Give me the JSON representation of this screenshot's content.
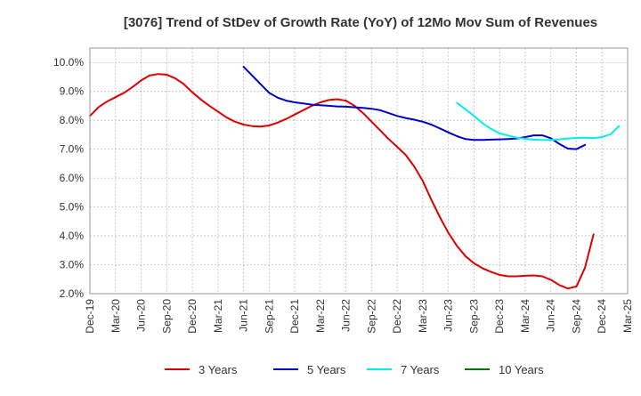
{
  "chart_data": {
    "type": "line",
    "title": "[3076]  Trend of StDev of Growth Rate (YoY) of 12Mo Mov Sum of Revenues",
    "xlabel": "",
    "ylabel": "",
    "ylim": [
      2.0,
      10.5
    ],
    "yticks": [
      2.0,
      3.0,
      4.0,
      5.0,
      6.0,
      7.0,
      8.0,
      9.0,
      10.0
    ],
    "ytick_labels": [
      "2.0%",
      "3.0%",
      "4.0%",
      "5.0%",
      "6.0%",
      "7.0%",
      "8.0%",
      "9.0%",
      "10.0%"
    ],
    "x_start": "Dec-19",
    "x_months": 63,
    "xtick_labels": [
      "Dec-19",
      "Mar-20",
      "Jun-20",
      "Sep-20",
      "Dec-20",
      "Mar-21",
      "Jun-21",
      "Sep-21",
      "Dec-21",
      "Mar-22",
      "Jun-22",
      "Sep-22",
      "Dec-22",
      "Mar-23",
      "Jun-23",
      "Sep-23",
      "Dec-23",
      "Mar-24",
      "Jun-24",
      "Sep-24",
      "Dec-24",
      "Mar-25"
    ],
    "grid": true,
    "legend_position": "bottom",
    "series": [
      {
        "name": "3 Years",
        "color": "#dd0000",
        "start_index": 0,
        "values": [
          8.15,
          8.45,
          8.65,
          8.8,
          8.95,
          9.15,
          9.38,
          9.55,
          9.6,
          9.58,
          9.45,
          9.25,
          8.97,
          8.72,
          8.5,
          8.3,
          8.1,
          7.95,
          7.85,
          7.8,
          7.78,
          7.82,
          7.92,
          8.05,
          8.2,
          8.35,
          8.5,
          8.62,
          8.7,
          8.73,
          8.68,
          8.5,
          8.25,
          7.95,
          7.65,
          7.35,
          7.08,
          6.8,
          6.4,
          5.9,
          5.25,
          4.65,
          4.1,
          3.65,
          3.3,
          3.05,
          2.88,
          2.75,
          2.65,
          2.6,
          2.6,
          2.62,
          2.63,
          2.6,
          2.48,
          2.3,
          2.18,
          2.25,
          2.9,
          4.05
        ]
      },
      {
        "name": "5 Years",
        "color": "#0000cc",
        "start_index": 18,
        "values": [
          9.85,
          9.55,
          9.25,
          8.95,
          8.78,
          8.68,
          8.62,
          8.58,
          8.54,
          8.52,
          8.5,
          8.48,
          8.47,
          8.45,
          8.43,
          8.4,
          8.35,
          8.25,
          8.15,
          8.08,
          8.02,
          7.95,
          7.85,
          7.72,
          7.58,
          7.45,
          7.35,
          7.32,
          7.32,
          7.33,
          7.34,
          7.35,
          7.37,
          7.42,
          7.48,
          7.48,
          7.38,
          7.18,
          7.02,
          7.0,
          7.15
        ]
      },
      {
        "name": "7 Years",
        "color": "#00eeee",
        "start_index": 43,
        "values": [
          8.6,
          8.38,
          8.15,
          7.9,
          7.7,
          7.55,
          7.47,
          7.4,
          7.36,
          7.33,
          7.32,
          7.32,
          7.34,
          7.37,
          7.39,
          7.4,
          7.38,
          7.42,
          7.52,
          7.8
        ]
      },
      {
        "name": "10 Years",
        "color": "#007700",
        "start_index": 0,
        "values": []
      }
    ]
  }
}
